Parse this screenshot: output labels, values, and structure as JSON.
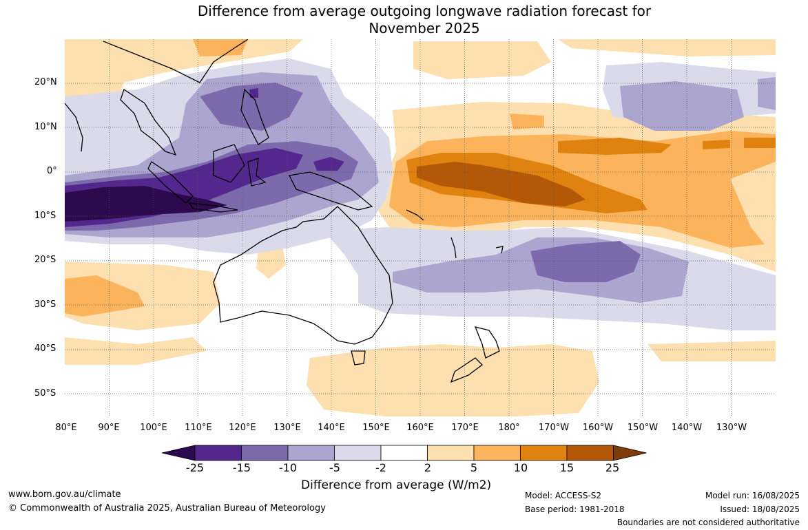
{
  "title": {
    "line1": "Difference from average outgoing longwave radiation forecast for",
    "line2": "November 2025"
  },
  "axes": {
    "lat_labels": [
      "20°N",
      "10°N",
      "0°",
      "10°S",
      "20°S",
      "30°S",
      "40°S",
      "50°S"
    ],
    "lon_labels": [
      "80°E",
      "90°E",
      "100°E",
      "110°E",
      "120°E",
      "130°E",
      "140°E",
      "150°E",
      "160°E",
      "170°E",
      "180°",
      "170°W",
      "160°W",
      "150°W",
      "140°W",
      "130°W"
    ]
  },
  "colorbar": {
    "ticks": [
      "-25",
      "-15",
      "-10",
      "-5",
      "-2",
      "2",
      "5",
      "10",
      "15",
      "25"
    ],
    "colors": [
      "#2d0a4e",
      "#54278f",
      "#7c6aac",
      "#aba5cf",
      "#dadaeb",
      "#ffffff",
      "#fddfb0",
      "#fbb45c",
      "#e0820f",
      "#b35806",
      "#7f3b08"
    ],
    "title": "Difference from average (W/m2)"
  },
  "footer": {
    "website": "www.bom.gov.au/climate",
    "copyright": "© Commonwealth of Australia 2025, Australian Bureau of Meteorology",
    "model": "Model: ACCESS-S2",
    "base_period": "Base period: 1981-2018",
    "model_run": "Model run: 16/08/2025",
    "issued": "Issued: 18/08/2025",
    "disclaimer": "Boundaries are not considered authoritative"
  },
  "map_features": [
    "OLR anomaly contour field",
    "Australia coastline",
    "Indonesia coastline",
    "New Zealand coastline",
    "Southeast Asia coastline",
    "Papua New Guinea coastline"
  ]
}
